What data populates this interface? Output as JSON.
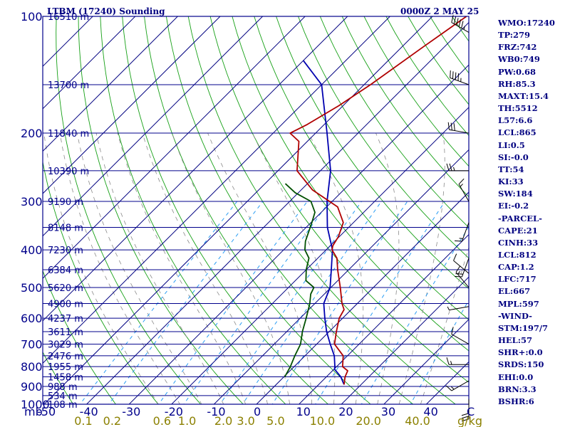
{
  "header": {
    "station": "LTBM (17240) Sounding",
    "time": "0000Z  2 MAY 25"
  },
  "indices": [
    "WMO:17240",
    "TP:279",
    "FRZ:742",
    "WB0:749",
    "PW:0.68",
    "RH:85.3",
    "MAXT:15.4",
    "TH:5512",
    "L57:6.6",
    "LCL:865",
    "LI:0.5",
    "SI:-0.0",
    "TT:54",
    "KI:33",
    "SW:184",
    "EI:-0.2",
    "-PARCEL-",
    "CAPE:21",
    "CINH:33",
    "LCL:812",
    "CAP:1.2",
    "LFC:717",
    "EL:667",
    "MPL:597",
    "-WIND-",
    "STM:197/7",
    "HEL:57",
    "SHR+:0.0",
    "SRDS:150",
    "EHI:0.0",
    "BRN:3.3",
    "BSHR:6"
  ],
  "colors": {
    "isobar": "#00008b",
    "isotherm": "#000080",
    "dry_adiabat": "#16a016",
    "moist_adiabat": "#8a8a8a",
    "mixing_ratio": "#2a9df4",
    "temperature": "#b00000",
    "dewpoint": "#005000",
    "parcel": "#0000b0",
    "wind_barb": "#000000",
    "mixing_label": "#8b8000"
  },
  "chart_data": {
    "type": "skew-t",
    "title": "LTBM (17240) Sounding",
    "x_unit": "mb",
    "mixing_ratio_unit": "g/kg",
    "pressure_levels": [
      100,
      200,
      300,
      400,
      500,
      600,
      700,
      800,
      900,
      1000
    ],
    "pressure_range": [
      1000,
      100
    ],
    "temperature_ticks": [
      "-50",
      "-40",
      "-30",
      "-20",
      "-10",
      "0",
      "10",
      "20",
      "30",
      "40",
      "C"
    ],
    "temperature_range": [
      -50,
      45
    ],
    "mixing_ratio_labels": [
      "0.1",
      "0.2",
      "0.6",
      "1.0",
      "2.0",
      "3.0",
      "5.0",
      "10.0",
      "20.0",
      "40.0"
    ],
    "heights": [
      {
        "label": "16510 m",
        "p": 100
      },
      {
        "label": "13700 m",
        "p": 150
      },
      {
        "label": "11840 m",
        "p": 200
      },
      {
        "label": "10390 m",
        "p": 250
      },
      {
        "label": "9190 m",
        "p": 300
      },
      {
        "label": "8148 m",
        "p": 350
      },
      {
        "label": "7230 m",
        "p": 400
      },
      {
        "label": "6384 m",
        "p": 450
      },
      {
        "label": "5620 m",
        "p": 500
      },
      {
        "label": "4900 m",
        "p": 550
      },
      {
        "label": "4237 m",
        "p": 600
      },
      {
        "label": "3611 m",
        "p": 650
      },
      {
        "label": "3029 m",
        "p": 700
      },
      {
        "label": "2476 m",
        "p": 750
      },
      {
        "label": "1955 m",
        "p": 800
      },
      {
        "label": "1458 m",
        "p": 850
      },
      {
        "label": "988 m",
        "p": 900
      },
      {
        "label": "534 m",
        "p": 950
      },
      {
        "label": "108 m",
        "p": 1000
      }
    ],
    "temperature_profile": [
      [
        890,
        16
      ],
      [
        850,
        14.4
      ],
      [
        820,
        13.6
      ],
      [
        800,
        11.4
      ],
      [
        750,
        9.0
      ],
      [
        700,
        4.2
      ],
      [
        650,
        1.7
      ],
      [
        600,
        -0.8
      ],
      [
        570,
        -1.7
      ],
      [
        550,
        -3.6
      ],
      [
        500,
        -7.8
      ],
      [
        450,
        -12.6
      ],
      [
        420,
        -15.5
      ],
      [
        400,
        -18.6
      ],
      [
        390,
        -19.4
      ],
      [
        370,
        -20.2
      ],
      [
        340,
        -22.4
      ],
      [
        310,
        -27.4
      ],
      [
        280,
        -37.4
      ],
      [
        250,
        -45.5
      ],
      [
        210,
        -52.0
      ],
      [
        200,
        -56.0
      ],
      [
        190,
        -54.0
      ],
      [
        170,
        -51.0
      ],
      [
        150,
        -48.5
      ],
      [
        120,
        -45.0
      ],
      [
        100,
        -42.0
      ]
    ],
    "dewpoint_profile": [
      [
        850,
        0.2
      ],
      [
        800,
        -0.9
      ],
      [
        750,
        -2.4
      ],
      [
        700,
        -3.8
      ],
      [
        650,
        -6.3
      ],
      [
        600,
        -8.6
      ],
      [
        550,
        -11.2
      ],
      [
        520,
        -13.2
      ],
      [
        500,
        -14.0
      ],
      [
        480,
        -17.5
      ],
      [
        450,
        -20.0
      ],
      [
        420,
        -22.1
      ],
      [
        400,
        -25.0
      ],
      [
        380,
        -26.9
      ],
      [
        340,
        -29.8
      ],
      [
        320,
        -31.5
      ],
      [
        300,
        -35.0
      ],
      [
        285,
        -40.7
      ],
      [
        270,
        -45.2
      ]
    ],
    "parcel_profile": [
      [
        890,
        16
      ],
      [
        850,
        13.4
      ],
      [
        812,
        10.1
      ],
      [
        800,
        9.6
      ],
      [
        750,
        6.9
      ],
      [
        700,
        3.2
      ],
      [
        650,
        -0.6
      ],
      [
        600,
        -4.2
      ],
      [
        550,
        -7.9
      ],
      [
        500,
        -10.2
      ],
      [
        450,
        -14.1
      ],
      [
        400,
        -18.5
      ],
      [
        350,
        -25.0
      ],
      [
        300,
        -31.2
      ],
      [
        250,
        -37.6
      ],
      [
        200,
        -47.3
      ],
      [
        150,
        -60.0
      ],
      [
        130,
        -70.0
      ]
    ],
    "wind_barbs": [
      {
        "p": 110,
        "dir": 300,
        "kt": 55
      },
      {
        "p": 150,
        "dir": 290,
        "kt": 45
      },
      {
        "p": 200,
        "dir": 280,
        "kt": 30
      },
      {
        "p": 250,
        "dir": 270,
        "kt": 25
      },
      {
        "p": 300,
        "dir": 330,
        "kt": 15
      },
      {
        "p": 340,
        "dir": 200,
        "kt": 15
      },
      {
        "p": 420,
        "dir": 200,
        "kt": 20
      },
      {
        "p": 460,
        "dir": 310,
        "kt": 10
      },
      {
        "p": 500,
        "dir": 320,
        "kt": 15
      },
      {
        "p": 560,
        "dir": 260,
        "kt": 5
      },
      {
        "p": 700,
        "dir": 300,
        "kt": 10
      },
      {
        "p": 790,
        "dir": 270,
        "kt": 15
      },
      {
        "p": 870,
        "dir": 240,
        "kt": 15
      },
      {
        "p": 970,
        "dir": 180,
        "kt": 30
      }
    ]
  }
}
